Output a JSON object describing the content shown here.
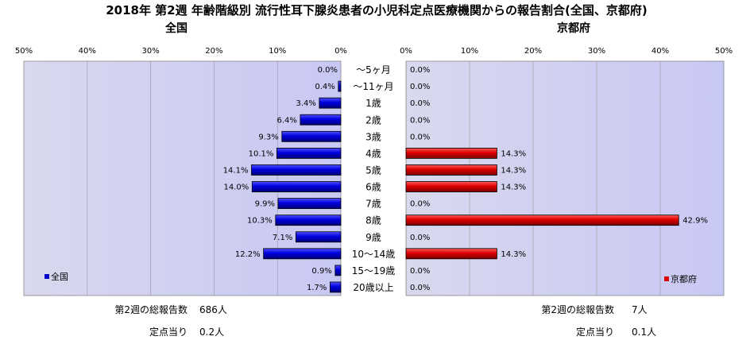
{
  "chart_data": {
    "type": "bar",
    "title": "2018年 第2週 年齢階級別 流行性耳下腺炎患者の小児科定点医療機関からの報告割合(全国、京都府)",
    "categories": [
      "～5ヶ月",
      "～11ヶ月",
      "1歳",
      "2歳",
      "3歳",
      "4歳",
      "5歳",
      "6歳",
      "7歳",
      "8歳",
      "9歳",
      "10～14歳",
      "15～19歳",
      "20歳以上"
    ],
    "xlim": [
      0,
      50
    ],
    "xticks": [
      "50%",
      "40%",
      "30%",
      "20%",
      "10%",
      "0%"
    ],
    "xticks_right": [
      "0%",
      "10%",
      "20%",
      "30%",
      "40%",
      "50%"
    ],
    "series": [
      {
        "name": "全国",
        "panel_title": "全国",
        "color": "#0000cc",
        "values": [
          0.0,
          0.4,
          3.4,
          6.4,
          9.3,
          10.1,
          14.1,
          14.0,
          9.9,
          10.3,
          7.1,
          12.2,
          0.9,
          1.7
        ],
        "labels": [
          "0.0%",
          "0.4%",
          "3.4%",
          "6.4%",
          "9.3%",
          "10.1%",
          "14.1%",
          "14.0%",
          "9.9%",
          "10.3%",
          "7.1%",
          "12.2%",
          "0.9%",
          "1.7%"
        ],
        "legend": "全国",
        "footer": [
          {
            "label": "第2週の総報告数",
            "value": "686人"
          },
          {
            "label": "定点当り",
            "value": "0.2人"
          }
        ]
      },
      {
        "name": "京都府",
        "panel_title": "京都府",
        "color": "#dd0000",
        "values": [
          0.0,
          0.0,
          0.0,
          0.0,
          0.0,
          14.3,
          14.3,
          14.3,
          0.0,
          42.9,
          0.0,
          14.3,
          0.0,
          0.0
        ],
        "labels": [
          "0.0%",
          "0.0%",
          "0.0%",
          "0.0%",
          "0.0%",
          "14.3%",
          "14.3%",
          "14.3%",
          "0.0%",
          "42.9%",
          "0.0%",
          "14.3%",
          "0.0%",
          "0.0%"
        ],
        "legend": "京都府",
        "footer": [
          {
            "label": "第2週の総報告数",
            "value": "7人"
          },
          {
            "label": "定点当り",
            "value": "0.1人"
          }
        ]
      }
    ],
    "grid": true,
    "legend_position": [
      "bottom-left",
      "bottom-right"
    ]
  }
}
